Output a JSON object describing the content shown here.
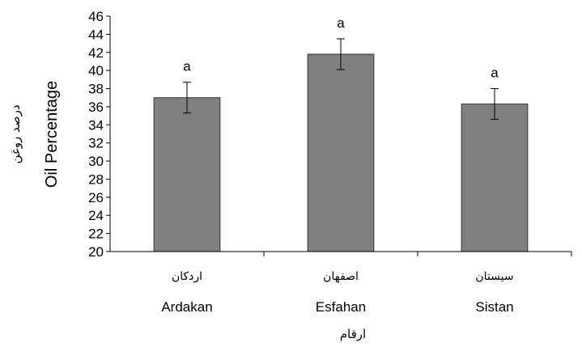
{
  "chart_data": {
    "type": "bar",
    "categories": [
      {
        "fa": "اردکان",
        "en": "Ardakan"
      },
      {
        "fa": "اصفهان",
        "en": "Esfahan"
      },
      {
        "fa": "سیستان",
        "en": "Sistan"
      }
    ],
    "values": [
      37.0,
      41.8,
      36.3
    ],
    "error": [
      1.7,
      1.7,
      1.7
    ],
    "significance_letters": [
      "a",
      "a",
      "a"
    ],
    "ylim": [
      20,
      46
    ],
    "yticks": [
      "20",
      "22",
      "24",
      "26",
      "28",
      "30",
      "32",
      "34",
      "36",
      "38",
      "40",
      "42",
      "44",
      "46"
    ],
    "ylabel_fa": "درصد روغن",
    "ylabel_en": "Oil Percentage",
    "xlabel_fa": "ارقام",
    "bar_color": "#808080",
    "grid": false,
    "legend": "none"
  }
}
